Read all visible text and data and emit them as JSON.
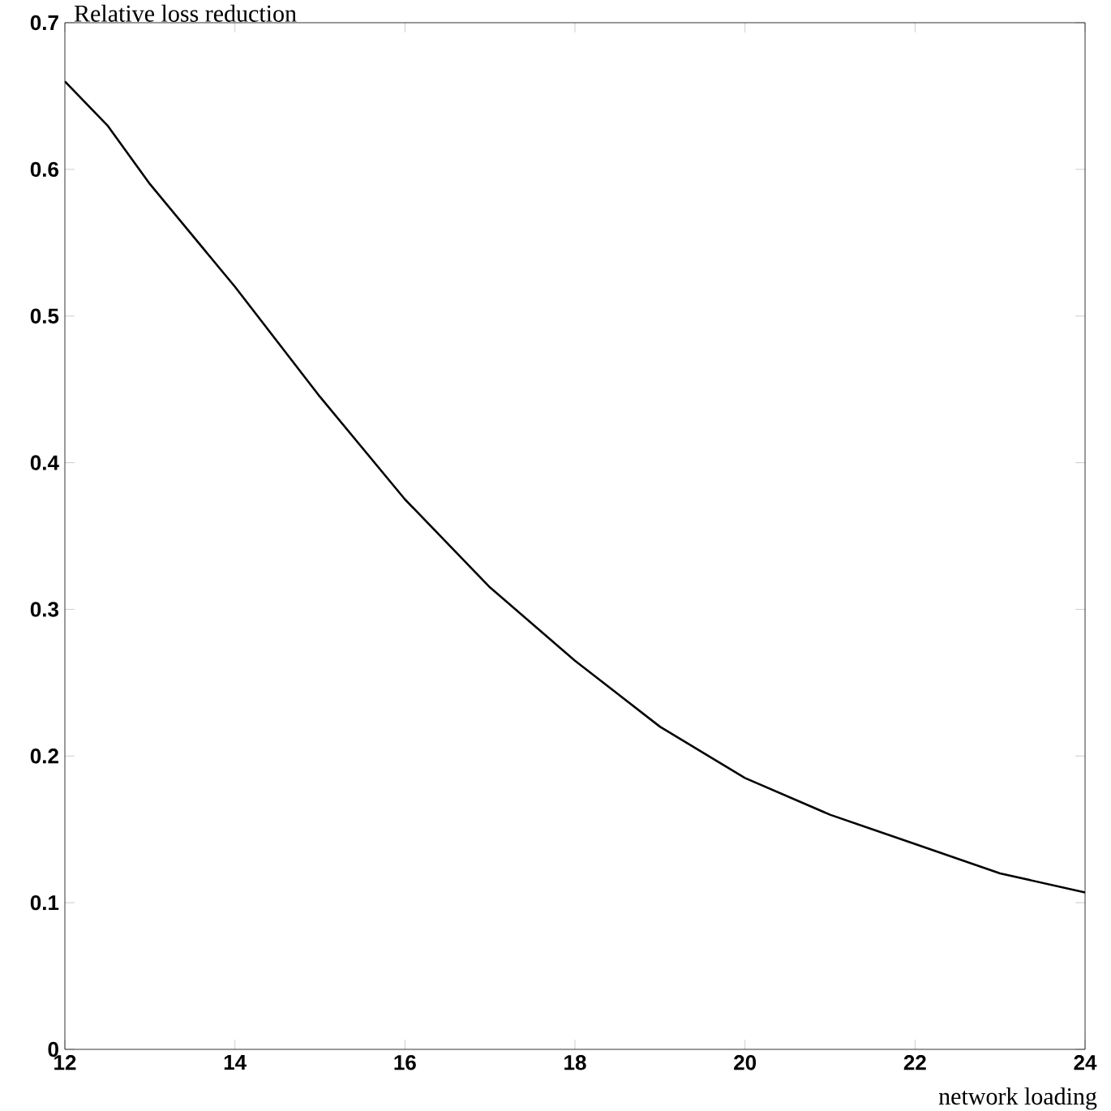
{
  "chart_data": {
    "type": "line",
    "ylabel": "Relative loss reduction",
    "xlabel": "network loading",
    "x": [
      12,
      12.5,
      13,
      14,
      15,
      16,
      17,
      18,
      19,
      20,
      21,
      22,
      23,
      24
    ],
    "series": [
      {
        "color": "#000000",
        "values": [
          0.66,
          0.63,
          0.59,
          0.52,
          0.445,
          0.375,
          0.315,
          0.265,
          0.22,
          0.185,
          0.16,
          0.14,
          0.12,
          0.107
        ]
      }
    ],
    "xlim": [
      12,
      24
    ],
    "ylim": [
      0,
      0.7
    ],
    "xticks": [
      12,
      14,
      16,
      18,
      20,
      22,
      24
    ],
    "yticks": [
      0,
      0.1,
      0.2,
      0.3,
      0.4,
      0.5,
      0.6,
      0.7
    ],
    "grid": false
  }
}
